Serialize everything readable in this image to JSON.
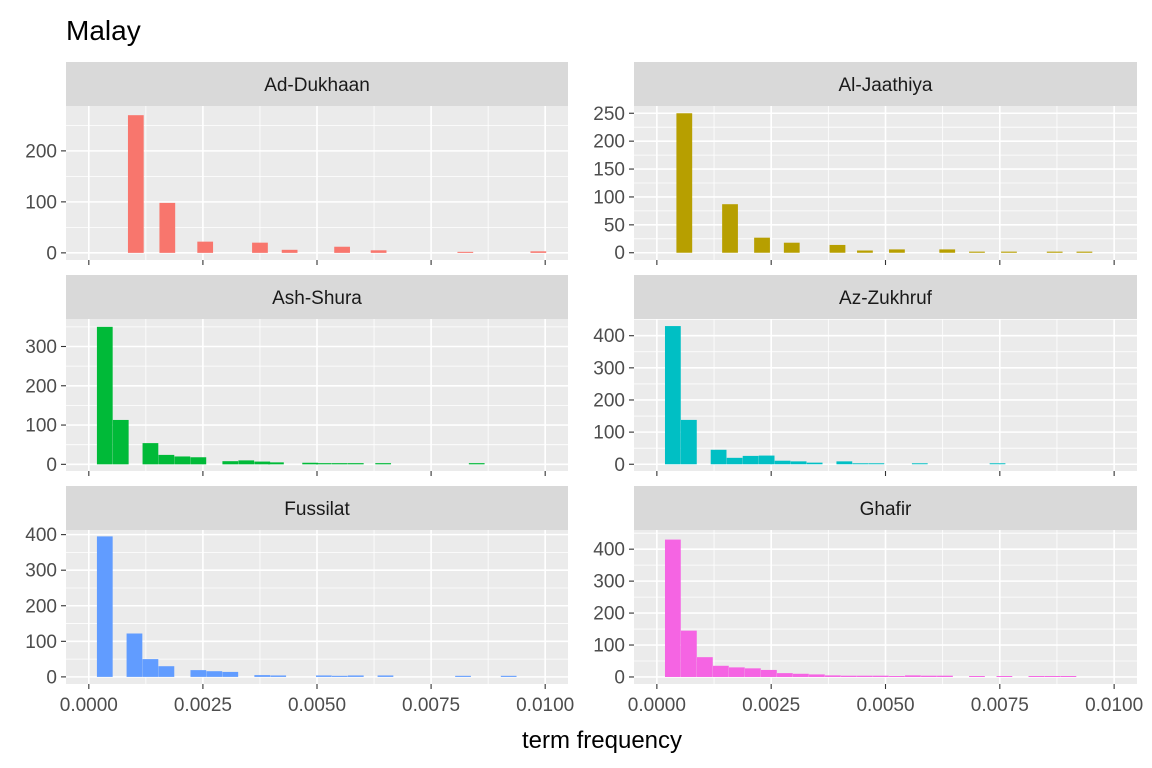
{
  "chart_data": {
    "type": "bar",
    "title": "Malay",
    "xlabel": "term frequency",
    "ylabel": "",
    "grid": true,
    "legend": "none",
    "bin_width": 0.000345,
    "x_ticks": [
      "0.0000",
      "0.0025",
      "0.0050",
      "0.0075",
      "0.0100"
    ],
    "x_tick_values": [
      0,
      0.0025,
      0.005,
      0.0075,
      0.01
    ],
    "xlim": [
      -0.0005,
      0.0105
    ],
    "panels": [
      {
        "name": "Ad-Dukhaan",
        "color": "#F8766D",
        "ylim": [
          -14,
          288
        ],
        "y_ticks": [
          0,
          100,
          200
        ],
        "bins": [
          {
            "x": 0.00103,
            "y": 270
          },
          {
            "x": 0.00172,
            "y": 98
          },
          {
            "x": 0.00255,
            "y": 22
          },
          {
            "x": 0.00375,
            "y": 20
          },
          {
            "x": 0.0044,
            "y": 6
          },
          {
            "x": 0.00555,
            "y": 12
          },
          {
            "x": 0.00635,
            "y": 5
          },
          {
            "x": 0.00825,
            "y": 2
          },
          {
            "x": 0.00985,
            "y": 3
          }
        ]
      },
      {
        "name": "Al-Jaathiya",
        "color": "#B79F00",
        "ylim": [
          -13,
          263
        ],
        "y_ticks": [
          0,
          50,
          100,
          150,
          200,
          250
        ],
        "bins": [
          {
            "x": 0.0006,
            "y": 250
          },
          {
            "x": 0.0016,
            "y": 87
          },
          {
            "x": 0.0023,
            "y": 27
          },
          {
            "x": 0.00295,
            "y": 18
          },
          {
            "x": 0.00395,
            "y": 14
          },
          {
            "x": 0.00455,
            "y": 4
          },
          {
            "x": 0.00525,
            "y": 6
          },
          {
            "x": 0.00635,
            "y": 6
          },
          {
            "x": 0.007,
            "y": 2
          },
          {
            "x": 0.0077,
            "y": 2
          },
          {
            "x": 0.0087,
            "y": 2
          },
          {
            "x": 0.00935,
            "y": 2
          }
        ]
      },
      {
        "name": "Ash-Shura",
        "color": "#00BA38",
        "ylim": [
          -17,
          370
        ],
        "y_ticks": [
          0,
          100,
          200,
          300
        ],
        "bins": [
          {
            "x": 0.00035,
            "y": 350
          },
          {
            "x": 0.0007,
            "y": 113
          },
          {
            "x": 0.00135,
            "y": 54
          },
          {
            "x": 0.0017,
            "y": 24
          },
          {
            "x": 0.00205,
            "y": 20
          },
          {
            "x": 0.0024,
            "y": 18
          },
          {
            "x": 0.0031,
            "y": 8
          },
          {
            "x": 0.00345,
            "y": 10
          },
          {
            "x": 0.0038,
            "y": 7
          },
          {
            "x": 0.0041,
            "y": 5
          },
          {
            "x": 0.00485,
            "y": 4
          },
          {
            "x": 0.00515,
            "y": 3
          },
          {
            "x": 0.0055,
            "y": 3
          },
          {
            "x": 0.00585,
            "y": 3
          },
          {
            "x": 0.00645,
            "y": 3
          },
          {
            "x": 0.0085,
            "y": 3
          }
        ]
      },
      {
        "name": "Az-Zukhruf",
        "color": "#00BFC4",
        "ylim": [
          -21,
          452
        ],
        "y_ticks": [
          0,
          100,
          200,
          300,
          400
        ],
        "bins": [
          {
            "x": 0.00035,
            "y": 430
          },
          {
            "x": 0.0007,
            "y": 138
          },
          {
            "x": 0.00135,
            "y": 45
          },
          {
            "x": 0.0017,
            "y": 20
          },
          {
            "x": 0.00205,
            "y": 26
          },
          {
            "x": 0.0024,
            "y": 27
          },
          {
            "x": 0.00275,
            "y": 11
          },
          {
            "x": 0.0031,
            "y": 9
          },
          {
            "x": 0.00345,
            "y": 5
          },
          {
            "x": 0.0041,
            "y": 9
          },
          {
            "x": 0.00445,
            "y": 3
          },
          {
            "x": 0.0048,
            "y": 3
          },
          {
            "x": 0.00575,
            "y": 3
          },
          {
            "x": 0.00745,
            "y": 3
          }
        ]
      },
      {
        "name": "Fussilat",
        "color": "#619CFF",
        "ylim": [
          -20,
          413
        ],
        "y_ticks": [
          0,
          100,
          200,
          300,
          400
        ],
        "bins": [
          {
            "x": 0.00035,
            "y": 395
          },
          {
            "x": 0.001,
            "y": 122
          },
          {
            "x": 0.00135,
            "y": 50
          },
          {
            "x": 0.0017,
            "y": 30
          },
          {
            "x": 0.0024,
            "y": 19
          },
          {
            "x": 0.00275,
            "y": 16
          },
          {
            "x": 0.0031,
            "y": 14
          },
          {
            "x": 0.0038,
            "y": 5
          },
          {
            "x": 0.00415,
            "y": 4
          },
          {
            "x": 0.00515,
            "y": 4
          },
          {
            "x": 0.0055,
            "y": 3
          },
          {
            "x": 0.00585,
            "y": 4
          },
          {
            "x": 0.0065,
            "y": 4
          },
          {
            "x": 0.0082,
            "y": 3
          },
          {
            "x": 0.0092,
            "y": 3
          }
        ]
      },
      {
        "name": "Ghafir",
        "color": "#F564E3",
        "ylim": [
          -22,
          460
        ],
        "y_ticks": [
          0,
          100,
          200,
          300,
          400
        ],
        "bins": [
          {
            "x": 0.00035,
            "y": 430
          },
          {
            "x": 0.0007,
            "y": 145
          },
          {
            "x": 0.00105,
            "y": 62
          },
          {
            "x": 0.0014,
            "y": 35
          },
          {
            "x": 0.00175,
            "y": 30
          },
          {
            "x": 0.0021,
            "y": 27
          },
          {
            "x": 0.00245,
            "y": 22
          },
          {
            "x": 0.0028,
            "y": 12
          },
          {
            "x": 0.00315,
            "y": 10
          },
          {
            "x": 0.0035,
            "y": 8
          },
          {
            "x": 0.00385,
            "y": 5
          },
          {
            "x": 0.0042,
            "y": 4
          },
          {
            "x": 0.00455,
            "y": 4
          },
          {
            "x": 0.0049,
            "y": 4
          },
          {
            "x": 0.00525,
            "y": 3
          },
          {
            "x": 0.0056,
            "y": 5
          },
          {
            "x": 0.00595,
            "y": 4
          },
          {
            "x": 0.0063,
            "y": 4
          },
          {
            "x": 0.007,
            "y": 3
          },
          {
            "x": 0.0076,
            "y": 3
          },
          {
            "x": 0.0083,
            "y": 3
          },
          {
            "x": 0.00865,
            "y": 3
          },
          {
            "x": 0.009,
            "y": 3
          }
        ]
      }
    ]
  }
}
